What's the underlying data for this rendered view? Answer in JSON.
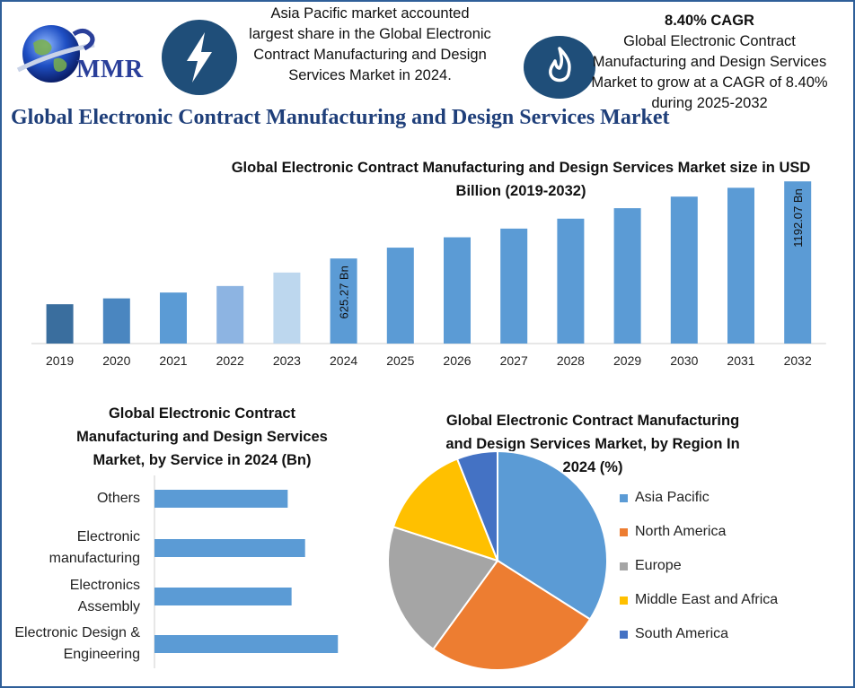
{
  "brand": {
    "logo_text": "MMR"
  },
  "highlights": {
    "region_text": "Asia Pacific market accounted largest share in the Global Electronic Contract Manufacturing and Design Services Market in 2024.",
    "region_lines": [
      "Asia Pacific market accounted",
      "largest share in the Global Electronic",
      "Contract Manufacturing and Design",
      "Services Market in 2024."
    ],
    "cagr_title": "8.40% CAGR",
    "cagr_lines": [
      "Global Electronic Contract",
      "Manufacturing and Design Services",
      "Market to grow at a CAGR of 8.40%",
      "during 2025-2032"
    ],
    "icons": [
      "lightning-icon",
      "flame-icon"
    ]
  },
  "main_title": "Global Electronic Contract Manufacturing and Design Services Market",
  "chart_data": [
    {
      "type": "bar",
      "title_lines": [
        "Global Electronic Contract Manufacturing and Design Services Market size in USD",
        "Billion (2019-2032)"
      ],
      "categories": [
        "2019",
        "2020",
        "2021",
        "2022",
        "2023",
        "2024",
        "2025",
        "2026",
        "2027",
        "2028",
        "2029",
        "2030",
        "2031",
        "2032"
      ],
      "values": [
        289,
        332,
        375,
        423,
        522,
        625.27,
        705,
        781,
        845,
        918,
        995,
        1080,
        1145,
        1192.07
      ],
      "data_labels": {
        "2024": "625.27 Bn",
        "2032": "1192.07 Bn"
      },
      "colors": [
        "#3a6e9e",
        "#4a86c0",
        "#5b9bd5",
        "#8db4e2",
        "#bdd7ee",
        "#5b9bd5",
        "#5b9bd5",
        "#5b9bd5",
        "#5b9bd5",
        "#5b9bd5",
        "#5b9bd5",
        "#5b9bd5",
        "#5b9bd5",
        "#5b9bd5"
      ],
      "ylim": [
        0,
        1200
      ],
      "grid": false
    },
    {
      "type": "bar",
      "orientation": "horizontal",
      "title_lines": [
        "Global Electronic Contract",
        "Manufacturing and Design Services",
        "Market, by Service in 2024 (Bn)"
      ],
      "categories": [
        [
          "Others"
        ],
        [
          "Electronic",
          "manufacturing"
        ],
        [
          "Electronics",
          "Assembly"
        ],
        [
          "Electronic Design &",
          "Engineering"
        ]
      ],
      "values": [
        138,
        156,
        142,
        190
      ],
      "xlim": [
        0,
        200
      ],
      "color": "#5b9bd5"
    },
    {
      "type": "pie",
      "title_lines": [
        "Global Electronic Contract Manufacturing",
        "and Design Services Market, by Region In",
        "2024 (%)"
      ],
      "labels": [
        "Asia Pacific",
        "North America",
        "Europe",
        "Middle East and Africa",
        "South America"
      ],
      "values": [
        34,
        26,
        20,
        14,
        6
      ],
      "colors": [
        "#5b9bd5",
        "#ed7d31",
        "#a5a5a5",
        "#ffc000",
        "#4472c4"
      ],
      "legend_position": "right"
    }
  ]
}
